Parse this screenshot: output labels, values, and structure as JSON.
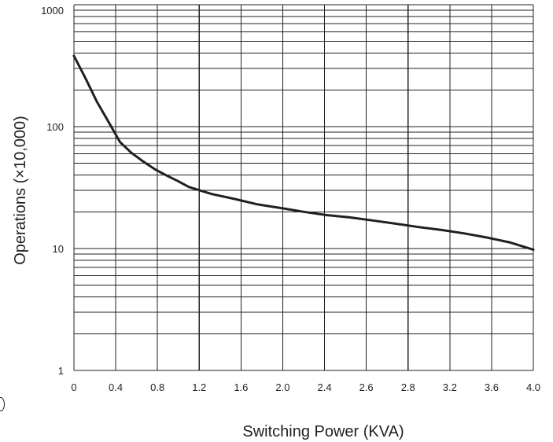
{
  "chart_data": {
    "type": "line",
    "title": "",
    "xlabel": "Switching Power (KVA)",
    "ylabel": "Operations (×10,000)",
    "y_scale": "log",
    "ylim": [
      1,
      1000
    ],
    "y_ticks": [
      {
        "value": 1,
        "label": "1"
      },
      {
        "value": 10,
        "label": "10"
      },
      {
        "value": 100,
        "label": "100"
      },
      {
        "value": 1000,
        "label": "1000"
      }
    ],
    "x_ticks": [
      "0",
      "0.4",
      "0.8",
      "1.2",
      "1.6",
      "2.0",
      "2.4",
      "2.6",
      "2.8",
      "3.2",
      "3.6",
      "4.0"
    ],
    "grid": true,
    "series": [
      {
        "x": [
          0,
          0.1,
          0.2,
          0.3,
          0.4,
          0.5,
          0.6,
          0.7,
          0.8,
          0.9,
          1.0,
          1.2,
          1.4,
          1.6,
          1.8,
          2.0,
          2.2,
          2.4,
          2.6,
          2.8,
          3.0,
          3.2,
          3.4,
          3.6,
          3.8,
          4.0
        ],
        "y": [
          380,
          250,
          160,
          110,
          75,
          61,
          52,
          45,
          40,
          36,
          32,
          28,
          25.5,
          23,
          21.5,
          20,
          18.8,
          18,
          17,
          16,
          15,
          14.2,
          13.3,
          12.3,
          11.2,
          9.8
        ]
      }
    ],
    "colors": {
      "line": "#231f20",
      "grid": "#231f20"
    }
  }
}
